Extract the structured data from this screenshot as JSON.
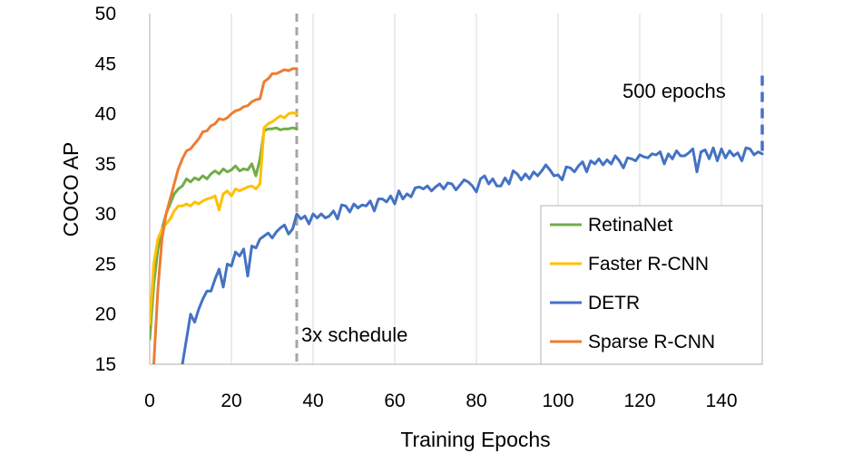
{
  "chart_data": {
    "type": "line",
    "title": "",
    "xlabel": "Training Epochs",
    "ylabel": "COCO AP",
    "xlim": [
      0,
      150
    ],
    "ylim": [
      15,
      50
    ],
    "x_ticks": [
      "0",
      "20",
      "40",
      "60",
      "80",
      "100",
      "120",
      "140"
    ],
    "y_ticks": [
      "15",
      "20",
      "25",
      "30",
      "35",
      "40",
      "45",
      "50"
    ],
    "grid": "vertical",
    "legend_position": "bottom-right",
    "annotations": [
      {
        "text": "3x schedule",
        "x": 36
      },
      {
        "text": "500 epochs",
        "x": 150
      }
    ],
    "series": [
      {
        "name": "RetinaNet",
        "color": "#70ad47",
        "x": [
          0,
          1,
          2,
          3,
          4,
          5,
          6,
          7,
          8,
          9,
          10,
          11,
          12,
          13,
          14,
          15,
          16,
          17,
          18,
          19,
          20,
          21,
          22,
          23,
          24,
          25,
          26,
          27,
          28,
          29,
          30,
          31,
          32,
          33,
          34,
          35,
          36
        ],
        "values": [
          17.5,
          23.0,
          26.5,
          28.5,
          30.0,
          31.0,
          32.0,
          32.5,
          32.8,
          33.5,
          33.2,
          33.6,
          33.4,
          33.8,
          33.5,
          34.0,
          34.3,
          34.0,
          34.5,
          34.2,
          34.4,
          34.8,
          34.3,
          34.5,
          34.4,
          35.0,
          33.8,
          35.5,
          38.3,
          38.5,
          38.5,
          38.6,
          38.4,
          38.5,
          38.5,
          38.6,
          38.5
        ]
      },
      {
        "name": "Faster R-CNN",
        "color": "#ffc000",
        "x": [
          0,
          1,
          2,
          3,
          4,
          5,
          6,
          7,
          8,
          9,
          10,
          11,
          12,
          13,
          14,
          15,
          16,
          17,
          18,
          19,
          20,
          21,
          22,
          23,
          24,
          25,
          26,
          27,
          28,
          29,
          30,
          31,
          32,
          33,
          34,
          35,
          36
        ],
        "values": [
          19.0,
          25.0,
          27.5,
          28.5,
          29.0,
          29.5,
          30.3,
          30.8,
          30.8,
          31.0,
          30.8,
          31.2,
          31.0,
          31.3,
          31.5,
          31.6,
          31.8,
          30.4,
          32.0,
          32.3,
          31.8,
          32.5,
          32.3,
          32.5,
          32.7,
          32.8,
          32.5,
          33.0,
          38.6,
          39.0,
          39.2,
          39.5,
          39.8,
          39.6,
          40.0,
          40.1,
          40.0
        ]
      },
      {
        "name": "DETR",
        "color": "#4472c4",
        "x": [
          8,
          9,
          10,
          11,
          12,
          13,
          14,
          15,
          16,
          17,
          18,
          19,
          20,
          21,
          22,
          23,
          24,
          25,
          26,
          27,
          28,
          29,
          30,
          31,
          32,
          33,
          34,
          35,
          36,
          37,
          38,
          39,
          40,
          41,
          42,
          43,
          44,
          45,
          46,
          47,
          48,
          49,
          50,
          51,
          52,
          53,
          54,
          55,
          56,
          57,
          58,
          59,
          60,
          61,
          62,
          63,
          64,
          65,
          66,
          67,
          68,
          69,
          70,
          71,
          72,
          73,
          74,
          75,
          76,
          77,
          78,
          79,
          80,
          81,
          82,
          83,
          84,
          85,
          86,
          87,
          88,
          89,
          90,
          91,
          92,
          93,
          94,
          95,
          96,
          97,
          98,
          99,
          100,
          101,
          102,
          103,
          104,
          105,
          106,
          107,
          108,
          109,
          110,
          111,
          112,
          113,
          114,
          115,
          116,
          117,
          118,
          119,
          120,
          121,
          122,
          123,
          124,
          125,
          126,
          127,
          128,
          129,
          130,
          131,
          132,
          133,
          134,
          135,
          136,
          137,
          138,
          139,
          140,
          141,
          142,
          143,
          144,
          145,
          146,
          147,
          148,
          149,
          150
        ],
        "values": [
          15.0,
          17.5,
          20.0,
          19.2,
          20.5,
          21.5,
          22.3,
          22.3,
          23.5,
          24.5,
          22.7,
          25.0,
          24.8,
          26.2,
          25.8,
          26.5,
          23.8,
          26.8,
          26.6,
          27.5,
          27.8,
          28.1,
          27.6,
          28.2,
          28.6,
          28.9,
          28.0,
          28.5,
          30.0,
          29.5,
          29.8,
          29.0,
          30.0,
          29.6,
          30.0,
          29.6,
          29.8,
          30.3,
          29.5,
          30.9,
          30.8,
          30.2,
          31.0,
          30.6,
          30.9,
          30.8,
          31.3,
          30.3,
          31.5,
          31.5,
          31.2,
          31.8,
          31.0,
          32.3,
          31.5,
          32.0,
          31.7,
          32.6,
          32.7,
          32.5,
          32.8,
          32.3,
          32.7,
          33.0,
          32.5,
          33.1,
          33.0,
          32.4,
          32.9,
          33.4,
          33.2,
          32.8,
          32.2,
          33.5,
          33.8,
          33.0,
          33.5,
          32.8,
          32.8,
          33.6,
          33.0,
          34.3,
          34.0,
          33.4,
          34.0,
          33.5,
          34.2,
          33.8,
          34.3,
          34.9,
          34.4,
          33.8,
          33.9,
          33.4,
          34.7,
          34.6,
          34.2,
          34.8,
          35.2,
          34.2,
          35.3,
          35.0,
          35.5,
          34.9,
          35.4,
          35.0,
          35.8,
          35.3,
          34.6,
          35.6,
          35.5,
          35.3,
          35.9,
          35.7,
          35.6,
          36.0,
          35.9,
          36.2,
          35.0,
          36.0,
          35.5,
          36.3,
          35.8,
          35.8,
          36.1,
          36.5,
          34.2,
          36.2,
          36.4,
          35.5,
          36.6,
          35.3,
          36.5,
          35.6,
          36.3,
          35.8,
          36.1,
          35.3,
          36.6,
          36.5,
          35.9,
          36.2,
          36.0
        ]
      },
      {
        "name": "Sparse R-CNN",
        "color": "#ed7d31",
        "x": [
          1,
          2,
          3,
          4,
          5,
          6,
          7,
          8,
          9,
          10,
          11,
          12,
          13,
          14,
          15,
          16,
          17,
          18,
          19,
          20,
          21,
          22,
          23,
          24,
          25,
          26,
          27,
          28,
          29,
          30,
          31,
          32,
          33,
          34,
          35,
          36
        ],
        "values": [
          15.0,
          22.5,
          27.5,
          30.0,
          31.5,
          33.0,
          34.5,
          35.5,
          36.3,
          36.5,
          37.0,
          37.5,
          38.2,
          38.3,
          38.8,
          39.0,
          39.5,
          39.4,
          39.6,
          40.0,
          40.3,
          40.4,
          40.7,
          40.8,
          41.2,
          41.4,
          41.5,
          43.2,
          43.5,
          44.0,
          44.0,
          44.2,
          44.4,
          44.3,
          44.5,
          44.5
        ]
      }
    ]
  }
}
